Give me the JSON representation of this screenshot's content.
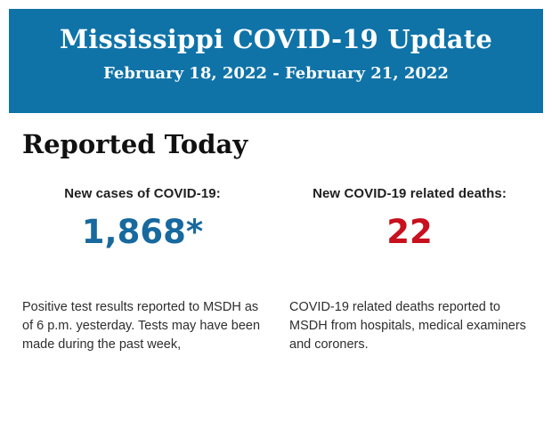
{
  "header": {
    "title": "Mississippi COVID-19 Update",
    "date_range": "February 18, 2022 - February 21, 2022",
    "background_color": "#0f73a8",
    "text_color": "#ffffff"
  },
  "section": {
    "heading": "Reported Today"
  },
  "stats": [
    {
      "label": "New cases of COVID-19:",
      "value": "1,868*",
      "value_color": "#17699e",
      "description": "Positive test results reported to MSDH as of 6 p.m. yesterday. Tests may have been made during the past week,"
    },
    {
      "label": "New COVID-19 related deaths:",
      "value": "22",
      "value_color": "#c8101e",
      "description": "COVID-19 related deaths reported to MSDH from hospitals, medical examiners and coroners."
    }
  ]
}
